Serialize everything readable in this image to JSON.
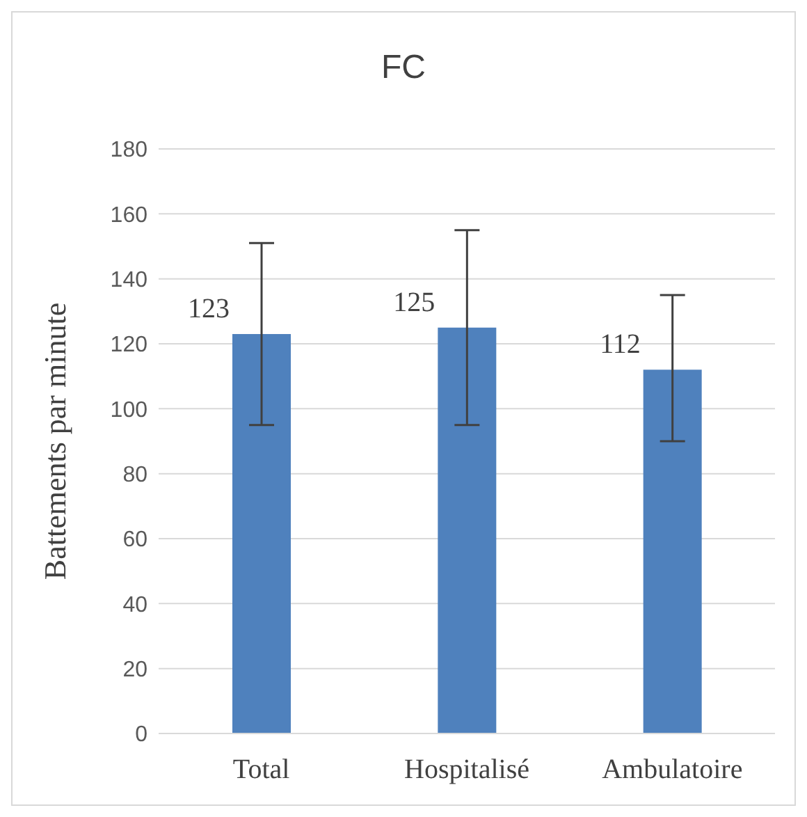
{
  "chart_data": {
    "type": "bar",
    "title": "FC",
    "ylabel": "Battements par minute",
    "categories": [
      "Total",
      "Hospitalisé",
      "Ambulatoire"
    ],
    "values": [
      123,
      125,
      112
    ],
    "errors": [
      [
        95,
        151
      ],
      [
        95,
        155
      ],
      [
        90,
        135
      ]
    ],
    "color": "#4f81bd",
    "ylim": [
      0,
      180
    ],
    "yticks": [
      0,
      20,
      40,
      60,
      80,
      100,
      120,
      140,
      160,
      180
    ],
    "grid": "y",
    "legend": false,
    "data_labels": true
  }
}
